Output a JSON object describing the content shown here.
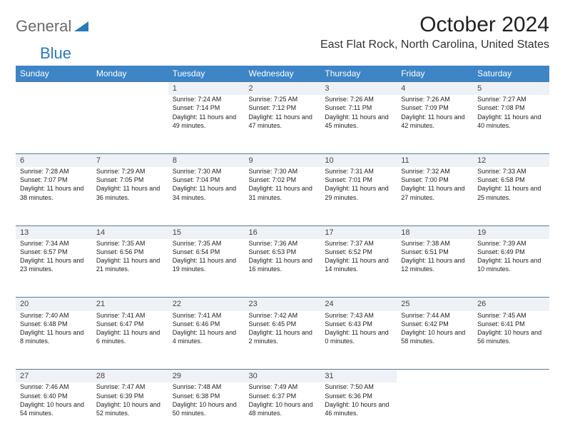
{
  "branding": {
    "word1": "General",
    "word2": "Blue",
    "word1_color": "#6b6b6b",
    "word2_color": "#2a7ab8",
    "triangle_color": "#2a7ab8"
  },
  "title": "October 2024",
  "location": "East Flat Rock, North Carolina, United States",
  "colors": {
    "header_bg": "#3d85c6",
    "header_text": "#ffffff",
    "daynum_bg": "#eef2f6",
    "daynum_border": "#5b7a99",
    "page_bg": "#ffffff"
  },
  "day_headers": [
    "Sunday",
    "Monday",
    "Tuesday",
    "Wednesday",
    "Thursday",
    "Friday",
    "Saturday"
  ],
  "weeks": [
    {
      "nums": [
        "",
        "",
        "1",
        "2",
        "3",
        "4",
        "5"
      ],
      "cells": [
        {
          "sunrise": "",
          "sunset": "",
          "daylight": ""
        },
        {
          "sunrise": "",
          "sunset": "",
          "daylight": ""
        },
        {
          "sunrise": "Sunrise: 7:24 AM",
          "sunset": "Sunset: 7:14 PM",
          "daylight": "Daylight: 11 hours and 49 minutes."
        },
        {
          "sunrise": "Sunrise: 7:25 AM",
          "sunset": "Sunset: 7:12 PM",
          "daylight": "Daylight: 11 hours and 47 minutes."
        },
        {
          "sunrise": "Sunrise: 7:26 AM",
          "sunset": "Sunset: 7:11 PM",
          "daylight": "Daylight: 11 hours and 45 minutes."
        },
        {
          "sunrise": "Sunrise: 7:26 AM",
          "sunset": "Sunset: 7:09 PM",
          "daylight": "Daylight: 11 hours and 42 minutes."
        },
        {
          "sunrise": "Sunrise: 7:27 AM",
          "sunset": "Sunset: 7:08 PM",
          "daylight": "Daylight: 11 hours and 40 minutes."
        }
      ]
    },
    {
      "nums": [
        "6",
        "7",
        "8",
        "9",
        "10",
        "11",
        "12"
      ],
      "cells": [
        {
          "sunrise": "Sunrise: 7:28 AM",
          "sunset": "Sunset: 7:07 PM",
          "daylight": "Daylight: 11 hours and 38 minutes."
        },
        {
          "sunrise": "Sunrise: 7:29 AM",
          "sunset": "Sunset: 7:05 PM",
          "daylight": "Daylight: 11 hours and 36 minutes."
        },
        {
          "sunrise": "Sunrise: 7:30 AM",
          "sunset": "Sunset: 7:04 PM",
          "daylight": "Daylight: 11 hours and 34 minutes."
        },
        {
          "sunrise": "Sunrise: 7:30 AM",
          "sunset": "Sunset: 7:02 PM",
          "daylight": "Daylight: 11 hours and 31 minutes."
        },
        {
          "sunrise": "Sunrise: 7:31 AM",
          "sunset": "Sunset: 7:01 PM",
          "daylight": "Daylight: 11 hours and 29 minutes."
        },
        {
          "sunrise": "Sunrise: 7:32 AM",
          "sunset": "Sunset: 7:00 PM",
          "daylight": "Daylight: 11 hours and 27 minutes."
        },
        {
          "sunrise": "Sunrise: 7:33 AM",
          "sunset": "Sunset: 6:58 PM",
          "daylight": "Daylight: 11 hours and 25 minutes."
        }
      ]
    },
    {
      "nums": [
        "13",
        "14",
        "15",
        "16",
        "17",
        "18",
        "19"
      ],
      "cells": [
        {
          "sunrise": "Sunrise: 7:34 AM",
          "sunset": "Sunset: 6:57 PM",
          "daylight": "Daylight: 11 hours and 23 minutes."
        },
        {
          "sunrise": "Sunrise: 7:35 AM",
          "sunset": "Sunset: 6:56 PM",
          "daylight": "Daylight: 11 hours and 21 minutes."
        },
        {
          "sunrise": "Sunrise: 7:35 AM",
          "sunset": "Sunset: 6:54 PM",
          "daylight": "Daylight: 11 hours and 19 minutes."
        },
        {
          "sunrise": "Sunrise: 7:36 AM",
          "sunset": "Sunset: 6:53 PM",
          "daylight": "Daylight: 11 hours and 16 minutes."
        },
        {
          "sunrise": "Sunrise: 7:37 AM",
          "sunset": "Sunset: 6:52 PM",
          "daylight": "Daylight: 11 hours and 14 minutes."
        },
        {
          "sunrise": "Sunrise: 7:38 AM",
          "sunset": "Sunset: 6:51 PM",
          "daylight": "Daylight: 11 hours and 12 minutes."
        },
        {
          "sunrise": "Sunrise: 7:39 AM",
          "sunset": "Sunset: 6:49 PM",
          "daylight": "Daylight: 11 hours and 10 minutes."
        }
      ]
    },
    {
      "nums": [
        "20",
        "21",
        "22",
        "23",
        "24",
        "25",
        "26"
      ],
      "cells": [
        {
          "sunrise": "Sunrise: 7:40 AM",
          "sunset": "Sunset: 6:48 PM",
          "daylight": "Daylight: 11 hours and 8 minutes."
        },
        {
          "sunrise": "Sunrise: 7:41 AM",
          "sunset": "Sunset: 6:47 PM",
          "daylight": "Daylight: 11 hours and 6 minutes."
        },
        {
          "sunrise": "Sunrise: 7:41 AM",
          "sunset": "Sunset: 6:46 PM",
          "daylight": "Daylight: 11 hours and 4 minutes."
        },
        {
          "sunrise": "Sunrise: 7:42 AM",
          "sunset": "Sunset: 6:45 PM",
          "daylight": "Daylight: 11 hours and 2 minutes."
        },
        {
          "sunrise": "Sunrise: 7:43 AM",
          "sunset": "Sunset: 6:43 PM",
          "daylight": "Daylight: 11 hours and 0 minutes."
        },
        {
          "sunrise": "Sunrise: 7:44 AM",
          "sunset": "Sunset: 6:42 PM",
          "daylight": "Daylight: 10 hours and 58 minutes."
        },
        {
          "sunrise": "Sunrise: 7:45 AM",
          "sunset": "Sunset: 6:41 PM",
          "daylight": "Daylight: 10 hours and 56 minutes."
        }
      ]
    },
    {
      "nums": [
        "27",
        "28",
        "29",
        "30",
        "31",
        "",
        ""
      ],
      "cells": [
        {
          "sunrise": "Sunrise: 7:46 AM",
          "sunset": "Sunset: 6:40 PM",
          "daylight": "Daylight: 10 hours and 54 minutes."
        },
        {
          "sunrise": "Sunrise: 7:47 AM",
          "sunset": "Sunset: 6:39 PM",
          "daylight": "Daylight: 10 hours and 52 minutes."
        },
        {
          "sunrise": "Sunrise: 7:48 AM",
          "sunset": "Sunset: 6:38 PM",
          "daylight": "Daylight: 10 hours and 50 minutes."
        },
        {
          "sunrise": "Sunrise: 7:49 AM",
          "sunset": "Sunset: 6:37 PM",
          "daylight": "Daylight: 10 hours and 48 minutes."
        },
        {
          "sunrise": "Sunrise: 7:50 AM",
          "sunset": "Sunset: 6:36 PM",
          "daylight": "Daylight: 10 hours and 46 minutes."
        },
        {
          "sunrise": "",
          "sunset": "",
          "daylight": ""
        },
        {
          "sunrise": "",
          "sunset": "",
          "daylight": ""
        }
      ]
    }
  ]
}
